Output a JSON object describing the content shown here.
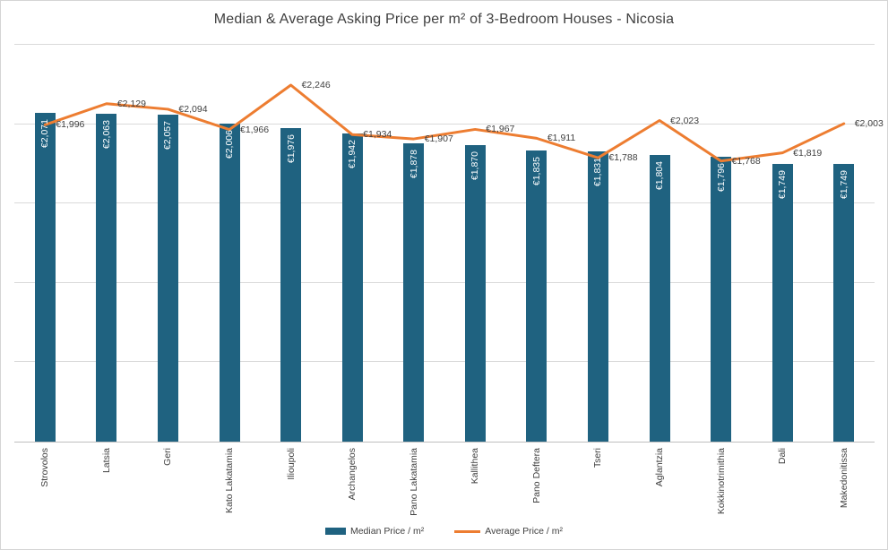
{
  "title": "Median & Average Asking Price per m² of 3-Bedroom Houses - Nicosia",
  "legend": {
    "items": [
      {
        "label": "Median Price / m²",
        "swatch": "bar-swatch",
        "color": "#1f6280"
      },
      {
        "label": "Average Price / m²",
        "swatch": "line-swatch",
        "color": "#ed7d31"
      }
    ],
    "position": "bottom"
  },
  "colors": {
    "bar": "#1f6280",
    "line": "#ed7d31",
    "bar_label_text": "#ffffff",
    "line_label_text": "#404040",
    "axis_label_text": "#404040",
    "gridline": "#d9d9d9",
    "axis_line": "#bfbfbf",
    "title_text": "#3f3f3f",
    "background": "#ffffff"
  },
  "chart_data": {
    "type": "bar",
    "subtype": "bar-line-combo",
    "title": "Median & Average Asking Price per m² of 3-Bedroom Houses - Nicosia",
    "xlabel": "",
    "ylabel": "",
    "categories": [
      "Strovolos",
      "Latsia",
      "Geri",
      "Kato Lakatamia",
      "Ilioupoli",
      "Archangelos",
      "Pano Lakatamia",
      "Kallithea",
      "Pano Deftera",
      "Tseri",
      "Aglantzia",
      "Kokkinotrimithia",
      "Dali",
      "Makedonitissa"
    ],
    "series": [
      {
        "name": "Median Price / m²",
        "type": "bar",
        "color": "#1f6280",
        "values": [
          2071,
          2063,
          2057,
          2006,
          1976,
          1942,
          1878,
          1870,
          1835,
          1831,
          1804,
          1796,
          1749,
          1749
        ],
        "data_labels": [
          "€2,071",
          "€2,063",
          "€2,057",
          "€2,006",
          "€1,976",
          "€1,942",
          "€1,878",
          "€1,870",
          "€1,835",
          "€1,831",
          "€1,804",
          "€1,796",
          "€1,749",
          "€1,749"
        ]
      },
      {
        "name": "Average Price / m²",
        "type": "line",
        "color": "#ed7d31",
        "values": [
          1996,
          2129,
          2094,
          1966,
          2246,
          1934,
          1907,
          1967,
          1911,
          1788,
          2023,
          1768,
          1819,
          2003
        ],
        "data_labels": [
          "€1,996",
          "€2,129",
          "€2,094",
          "€1,966",
          "€2,246",
          "€1,934",
          "€1,907",
          "€1,967",
          "€1,911",
          "€1,788",
          "€2,023",
          "€1,768",
          "€1,819",
          "€2,003"
        ]
      }
    ],
    "ylim": [
      0,
      2500
    ],
    "gridline_step": 500,
    "y_tick_labels_visible": false,
    "grid": true,
    "legend_position": "bottom"
  }
}
